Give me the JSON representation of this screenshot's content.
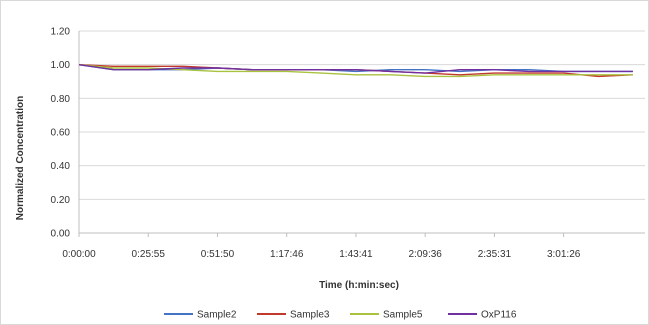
{
  "chart_data": {
    "type": "line",
    "title": "",
    "xlabel": "Time (h:min:sec)",
    "ylabel": "Normalized Concentration",
    "ylim": [
      0,
      1.2
    ],
    "yticks": [
      "0.00",
      "0.20",
      "0.40",
      "0.60",
      "0.80",
      "1.00",
      "1.20"
    ],
    "xticks": [
      "0:00:00",
      "0:25:55",
      "0:51:50",
      "1:17:46",
      "1:43:41",
      "2:09:36",
      "2:35:31",
      "3:01:26"
    ],
    "grid": true,
    "legend_position": "bottom",
    "x": [
      "0:00:00",
      "0:12:58",
      "0:25:55",
      "0:38:53",
      "0:51:50",
      "1:04:48",
      "1:17:46",
      "1:30:43",
      "1:43:41",
      "1:56:38",
      "2:09:36",
      "2:22:34",
      "2:35:31",
      "2:48:29",
      "3:01:26",
      "3:14:24",
      "3:21:00"
    ],
    "series": [
      {
        "name": "Sample2",
        "color": "#4472c4",
        "values": [
          1.0,
          0.97,
          0.97,
          0.97,
          0.98,
          0.97,
          0.97,
          0.97,
          0.96,
          0.97,
          0.97,
          0.96,
          0.97,
          0.97,
          0.96,
          0.96,
          0.96
        ]
      },
      {
        "name": "Sample3",
        "color": "#c0392b",
        "values": [
          1.0,
          0.99,
          0.99,
          0.99,
          0.98,
          0.97,
          0.97,
          0.97,
          0.97,
          0.96,
          0.95,
          0.94,
          0.95,
          0.95,
          0.95,
          0.93,
          0.94
        ]
      },
      {
        "name": "Sample5",
        "color": "#a9c23f",
        "values": [
          1.0,
          0.98,
          0.98,
          0.97,
          0.96,
          0.96,
          0.96,
          0.95,
          0.94,
          0.94,
          0.93,
          0.93,
          0.94,
          0.94,
          0.94,
          0.94,
          0.94
        ]
      },
      {
        "name": "OxP116",
        "color": "#7030a0",
        "values": [
          1.0,
          0.97,
          0.97,
          0.98,
          0.98,
          0.97,
          0.97,
          0.97,
          0.97,
          0.96,
          0.95,
          0.97,
          0.97,
          0.96,
          0.96,
          0.96,
          0.96
        ]
      }
    ]
  }
}
